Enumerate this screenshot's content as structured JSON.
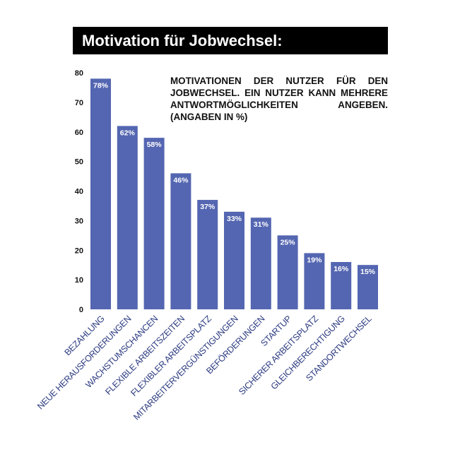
{
  "chart_data": {
    "type": "bar",
    "title": "Motivation für Jobwechsel:",
    "subtitle": "MOTIVATIONEN DER NUTZER FÜR DEN JOBWECHSEL. EIN NUTZER KANN MEHRERE ANTWORTMÖGLICHKEITEN ANGEBEN. (ANGABEN IN %)",
    "categories": [
      "BEZAHLUNG",
      "NEUE HERAUSFORDERUNGEN",
      "WACHSTUMSCHANCEN",
      "FLEXIBLE ARBEITSZEITEN",
      "FLEXIBLER ARBEITSPLATZ",
      "MITARBEITERVERGÜNSTIGUNGEN",
      "BEFÖRDERUNGEN",
      "STARTUP",
      "SICHERER ARBEITSPLATZ",
      "GLEICHBERECHTIGUNG",
      "STANDORTWECHSEL"
    ],
    "values": [
      78,
      62,
      58,
      46,
      37,
      33,
      31,
      25,
      19,
      16,
      15
    ],
    "data_labels": [
      "78%",
      "62%",
      "58%",
      "46%",
      "37%",
      "33%",
      "31%",
      "25%",
      "19%",
      "16%",
      "15%"
    ],
    "yticks": [
      "0",
      "10",
      "20",
      "30",
      "40",
      "50",
      "60",
      "70",
      "80"
    ],
    "ylim": [
      0,
      80
    ],
    "xlabel": "",
    "ylabel": "",
    "grid": false,
    "colors": {
      "bar": "#5466b1",
      "label": "#2b3a80"
    }
  }
}
